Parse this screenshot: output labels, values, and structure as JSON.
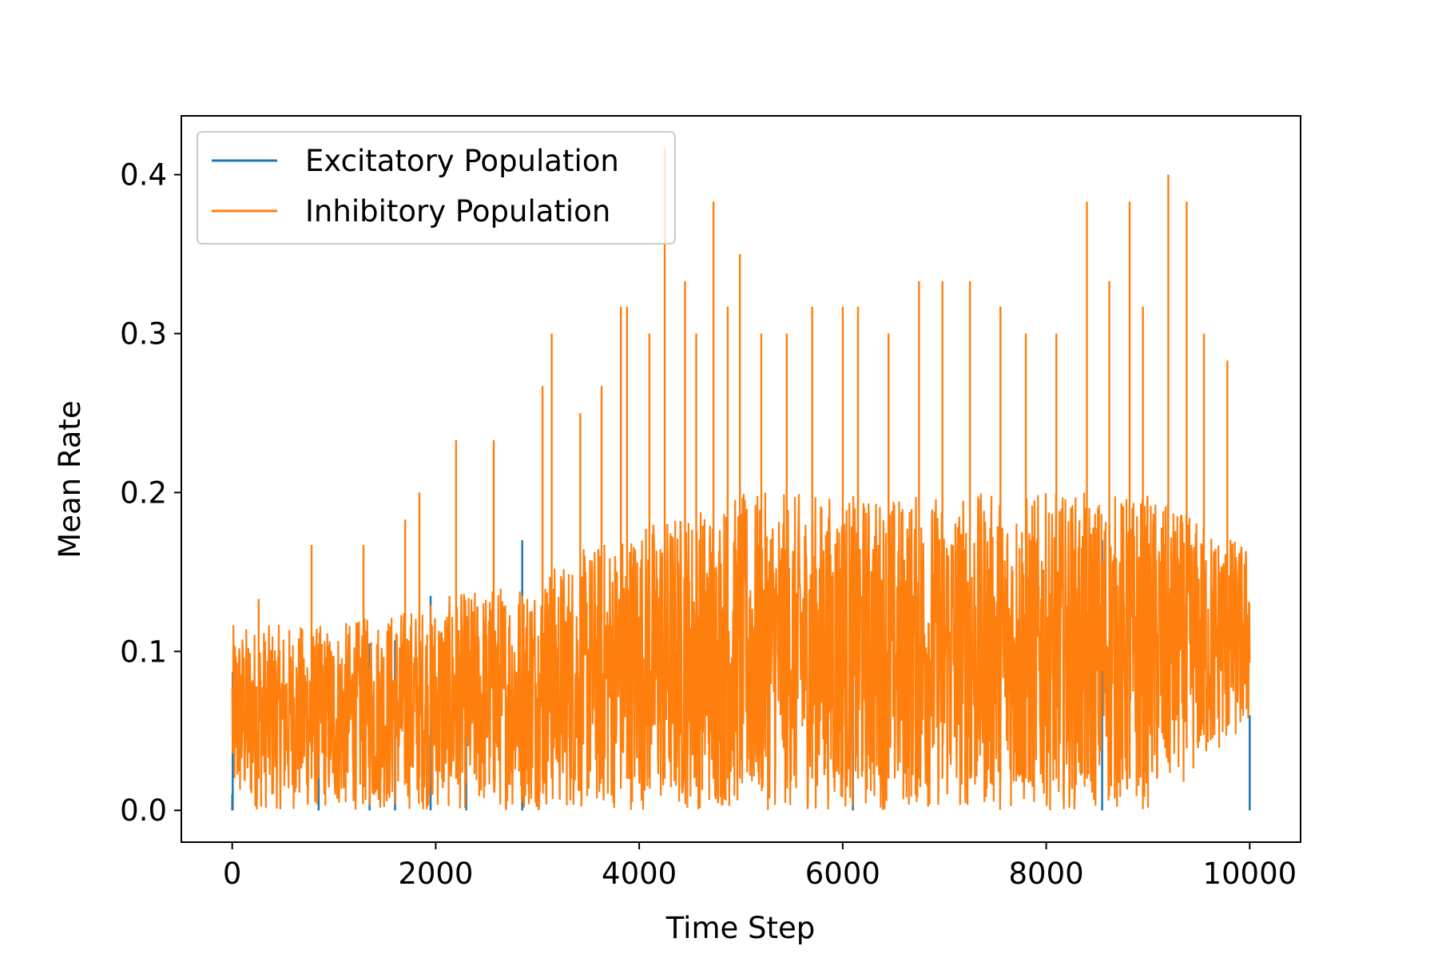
{
  "chart_data": {
    "type": "line",
    "title": "",
    "xlabel": "Time Step",
    "ylabel": "Mean Rate",
    "xlim": [
      -500,
      10500
    ],
    "ylim": [
      -0.02,
      0.437
    ],
    "xticks": [
      0,
      2000,
      4000,
      6000,
      8000,
      10000
    ],
    "xtick_labels": [
      "0",
      "2000",
      "4000",
      "6000",
      "8000",
      "10000"
    ],
    "yticks": [
      0.0,
      0.1,
      0.2,
      0.3,
      0.4
    ],
    "ytick_labels": [
      "0.0",
      "0.1",
      "0.2",
      "0.3",
      "0.4"
    ],
    "grid": false,
    "legend_position": "top-left",
    "series": [
      {
        "name": "Excitatory Population",
        "color": "#1f77b4",
        "points": [
          [
            0,
            0.01
          ],
          [
            5,
            0.087
          ],
          [
            150,
            0.0
          ],
          [
            850,
            0.09
          ],
          [
            1350,
            0.105
          ],
          [
            1600,
            0.107
          ],
          [
            1950,
            0.135
          ],
          [
            2300,
            0.12
          ],
          [
            2850,
            0.17
          ],
          [
            6100,
            0.175
          ],
          [
            8550,
            0.17
          ],
          [
            10000,
            0.06
          ]
        ]
      },
      {
        "name": "Inhibitory Population",
        "color": "#ff7f0e",
        "envelope": [
          {
            "x": 0,
            "low": 0.0,
            "high": 0.117
          },
          {
            "x": 1000,
            "low": 0.0,
            "high": 0.117
          },
          {
            "x": 2000,
            "low": 0.0,
            "high": 0.133
          },
          {
            "x": 3000,
            "low": 0.0,
            "high": 0.15
          },
          {
            "x": 4000,
            "low": 0.0,
            "high": 0.183
          },
          {
            "x": 5000,
            "low": 0.0,
            "high": 0.2
          },
          {
            "x": 6000,
            "low": 0.0,
            "high": 0.2
          },
          {
            "x": 7000,
            "low": 0.0,
            "high": 0.2
          },
          {
            "x": 8000,
            "low": 0.0,
            "high": 0.2
          },
          {
            "x": 9000,
            "low": 0.0,
            "high": 0.2
          },
          {
            "x": 10000,
            "low": 0.05,
            "high": 0.167
          }
        ],
        "peaks": [
          [
            260,
            0.133
          ],
          [
            780,
            0.167
          ],
          [
            1290,
            0.167
          ],
          [
            1700,
            0.183
          ],
          [
            1840,
            0.2
          ],
          [
            2200,
            0.233
          ],
          [
            2570,
            0.233
          ],
          [
            3050,
            0.267
          ],
          [
            3140,
            0.3
          ],
          [
            3420,
            0.25
          ],
          [
            3630,
            0.267
          ],
          [
            3820,
            0.317
          ],
          [
            3880,
            0.317
          ],
          [
            4100,
            0.3
          ],
          [
            4250,
            0.417
          ],
          [
            4450,
            0.333
          ],
          [
            4560,
            0.3
          ],
          [
            4730,
            0.383
          ],
          [
            4870,
            0.317
          ],
          [
            4990,
            0.35
          ],
          [
            5200,
            0.3
          ],
          [
            5450,
            0.3
          ],
          [
            5700,
            0.317
          ],
          [
            6000,
            0.317
          ],
          [
            6150,
            0.317
          ],
          [
            6450,
            0.3
          ],
          [
            6750,
            0.333
          ],
          [
            6980,
            0.333
          ],
          [
            7250,
            0.333
          ],
          [
            7550,
            0.317
          ],
          [
            7800,
            0.3
          ],
          [
            8100,
            0.3
          ],
          [
            8400,
            0.383
          ],
          [
            8620,
            0.333
          ],
          [
            8820,
            0.383
          ],
          [
            8950,
            0.317
          ],
          [
            9200,
            0.4
          ],
          [
            9380,
            0.383
          ],
          [
            9550,
            0.3
          ],
          [
            9780,
            0.283
          ]
        ]
      }
    ]
  }
}
